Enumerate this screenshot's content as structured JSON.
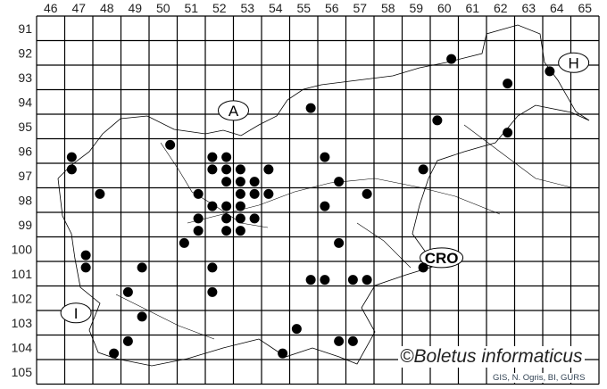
{
  "map": {
    "columns": [
      46,
      47,
      48,
      49,
      50,
      51,
      52,
      53,
      54,
      55,
      56,
      57,
      58,
      59,
      60,
      61,
      62,
      63,
      64,
      65
    ],
    "rows": [
      91,
      92,
      93,
      94,
      95,
      96,
      97,
      98,
      99,
      100,
      101,
      102,
      103,
      104,
      105
    ],
    "dot_color": "#000000",
    "grid_color": "#000000",
    "country_labels": [
      {
        "text": "A",
        "col": 52.5,
        "row": 94.35
      },
      {
        "text": "H",
        "col": 64.6,
        "row": 92.4
      },
      {
        "text": "CRO",
        "col": 59.9,
        "row": 100.35
      },
      {
        "text": "I",
        "col": 46.9,
        "row": 102.6
      }
    ],
    "occurrences": [
      [
        46.75,
        96.25
      ],
      [
        46.75,
        96.75
      ],
      [
        47.75,
        97.75
      ],
      [
        50.25,
        95.75
      ],
      [
        55.25,
        94.25
      ],
      [
        60.25,
        92.25
      ],
      [
        62.25,
        93.25
      ],
      [
        63.75,
        92.75
      ],
      [
        59.75,
        94.75
      ],
      [
        62.25,
        95.25
      ],
      [
        55.75,
        96.25
      ],
      [
        59.25,
        96.75
      ],
      [
        56.25,
        97.25
      ],
      [
        57.25,
        97.75
      ],
      [
        51.75,
        96.25
      ],
      [
        52.25,
        96.25
      ],
      [
        51.75,
        96.75
      ],
      [
        52.25,
        96.75
      ],
      [
        52.75,
        96.75
      ],
      [
        53.75,
        96.75
      ],
      [
        52.25,
        97.25
      ],
      [
        52.75,
        97.25
      ],
      [
        53.25,
        97.25
      ],
      [
        51.25,
        97.75
      ],
      [
        52.75,
        97.75
      ],
      [
        53.25,
        97.75
      ],
      [
        53.75,
        97.75
      ],
      [
        51.75,
        98.25
      ],
      [
        52.25,
        98.25
      ],
      [
        52.75,
        98.25
      ],
      [
        55.75,
        98.25
      ],
      [
        51.25,
        98.75
      ],
      [
        52.25,
        98.75
      ],
      [
        52.75,
        98.75
      ],
      [
        53.25,
        98.75
      ],
      [
        51.25,
        99.25
      ],
      [
        52.25,
        99.25
      ],
      [
        52.75,
        99.25
      ],
      [
        50.75,
        99.75
      ],
      [
        56.25,
        99.75
      ],
      [
        59.25,
        100.75
      ],
      [
        47.25,
        100.25
      ],
      [
        47.25,
        100.75
      ],
      [
        49.25,
        100.75
      ],
      [
        51.75,
        100.75
      ],
      [
        48.75,
        101.75
      ],
      [
        51.75,
        101.75
      ],
      [
        55.25,
        101.25
      ],
      [
        55.75,
        101.25
      ],
      [
        56.75,
        101.25
      ],
      [
        57.25,
        101.25
      ],
      [
        49.25,
        102.75
      ],
      [
        54.75,
        103.25
      ],
      [
        48.75,
        103.75
      ],
      [
        56.25,
        103.75
      ],
      [
        56.75,
        103.75
      ],
      [
        48.25,
        104.25
      ],
      [
        54.25,
        104.25
      ]
    ]
  },
  "copyright": "©Boletus informaticus",
  "credit": "GIS, N. Ogris, BI, GURS"
}
